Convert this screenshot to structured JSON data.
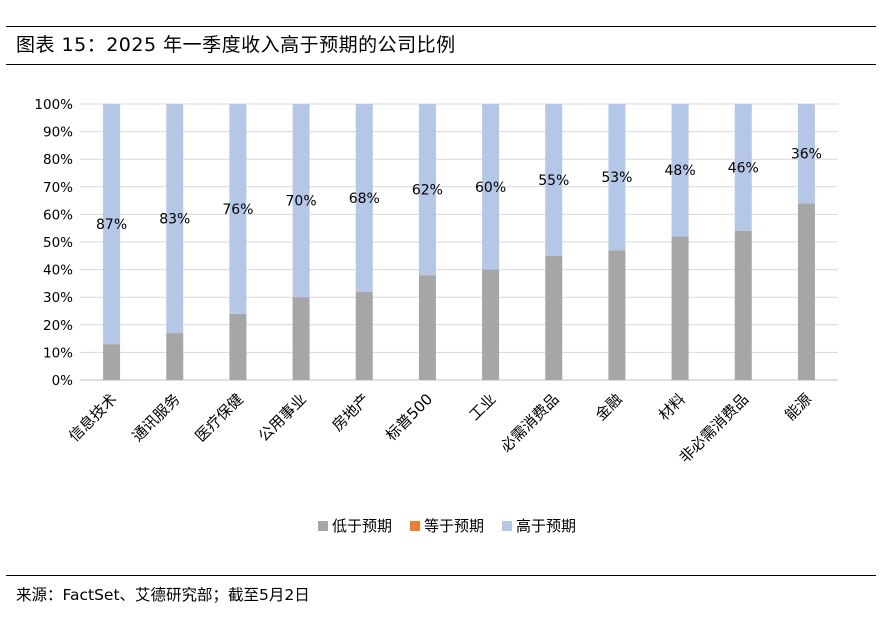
{
  "header": {
    "title": "图表 15：2025 年一季度收入高于预期的公司比例"
  },
  "footer": {
    "source": "来源：FactSet、艾德研究部；截至5月2日"
  },
  "colors": {
    "below": "#a6a6a6",
    "equal": "#ed7d31",
    "above": "#b4c7e7",
    "grid": "#d9d9d9"
  },
  "chart_data": {
    "type": "bar",
    "stacked": true,
    "percent_stacked": true,
    "categories": [
      "信息技术",
      "通讯服务",
      "医疗保健",
      "公用事业",
      "房地产",
      "标普500",
      "工业",
      "必需消费品",
      "金融",
      "材料",
      "非必需消费品",
      "能源"
    ],
    "series": [
      {
        "name": "低于预期",
        "values": [
          13,
          17,
          24,
          30,
          32,
          38,
          40,
          45,
          47,
          52,
          54,
          64
        ]
      },
      {
        "name": "等于预期",
        "values": [
          0,
          0,
          0,
          0,
          0,
          0,
          0,
          0,
          0,
          0,
          0,
          0
        ]
      },
      {
        "name": "高于预期",
        "values": [
          87,
          83,
          76,
          70,
          68,
          62,
          60,
          55,
          53,
          48,
          46,
          36
        ]
      }
    ],
    "data_labels": [
      "87%",
      "83%",
      "76%",
      "70%",
      "68%",
      "62%",
      "60%",
      "55%",
      "53%",
      "48%",
      "46%",
      "36%"
    ],
    "yticks": [
      "0%",
      "10%",
      "20%",
      "30%",
      "40%",
      "50%",
      "60%",
      "70%",
      "80%",
      "90%",
      "100%"
    ],
    "ylim": [
      0,
      100
    ],
    "grid": true,
    "legend_position": "bottom"
  }
}
